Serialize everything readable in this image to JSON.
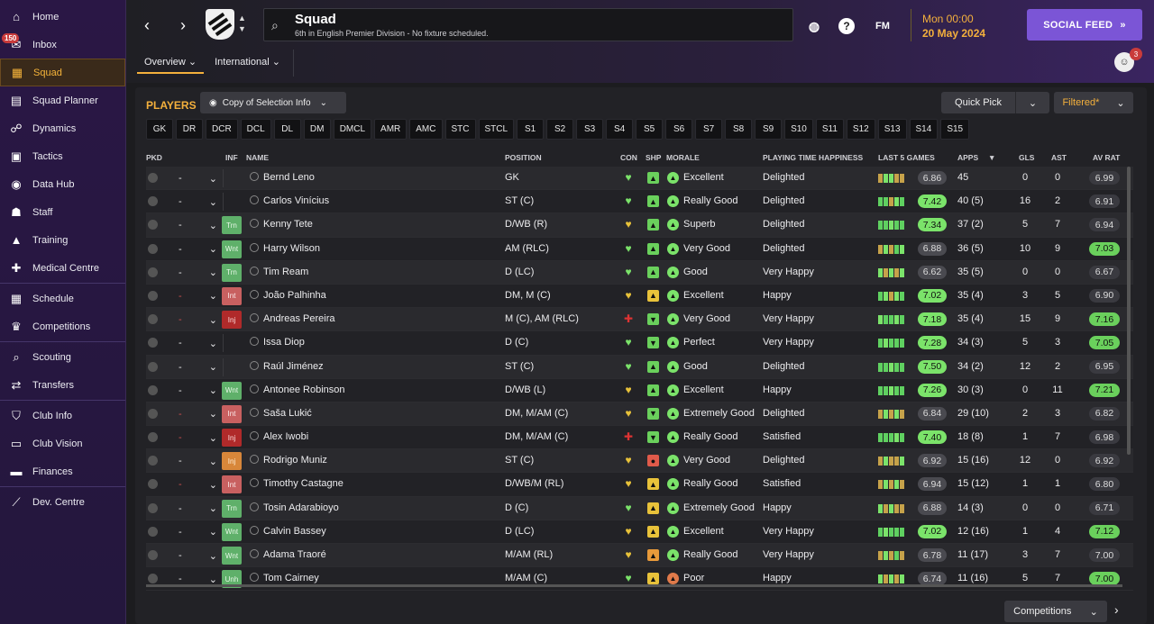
{
  "sidebar": {
    "items": [
      {
        "label": "Home",
        "icon": "home-icon",
        "glyph": "⌂"
      },
      {
        "label": "Inbox",
        "icon": "inbox-icon",
        "glyph": "✉",
        "badge": "150"
      },
      {
        "label": "Squad",
        "icon": "shirt-icon",
        "glyph": "▦",
        "active": true
      },
      {
        "label": "Squad Planner",
        "icon": "clipboard-icon",
        "glyph": "▤"
      },
      {
        "label": "Dynamics",
        "icon": "people-icon",
        "glyph": "☍"
      },
      {
        "label": "Tactics",
        "icon": "tactics-board-icon",
        "glyph": "▣"
      },
      {
        "label": "Data Hub",
        "icon": "data-hub-icon",
        "glyph": "◉"
      },
      {
        "label": "Staff",
        "icon": "staff-icon",
        "glyph": "☗"
      },
      {
        "label": "Training",
        "icon": "training-cone-icon",
        "glyph": "▲"
      },
      {
        "label": "Medical Centre",
        "icon": "medical-icon",
        "glyph": "✚"
      },
      {
        "label": "Schedule",
        "icon": "calendar-icon",
        "glyph": "▦",
        "sep": true
      },
      {
        "label": "Competitions",
        "icon": "trophy-icon",
        "glyph": "♛"
      },
      {
        "label": "Scouting",
        "icon": "magnifier-icon",
        "glyph": "⌕",
        "sep": true
      },
      {
        "label": "Transfers",
        "icon": "transfer-arrows-icon",
        "glyph": "⇄"
      },
      {
        "label": "Club Info",
        "icon": "shield-icon",
        "glyph": "⛉",
        "sep": true
      },
      {
        "label": "Club Vision",
        "icon": "briefcase-icon",
        "glyph": "▭"
      },
      {
        "label": "Finances",
        "icon": "money-icon",
        "glyph": "▬"
      },
      {
        "label": "Dev. Centre",
        "icon": "growth-icon",
        "glyph": "⟋",
        "sep": true
      }
    ]
  },
  "header": {
    "title": "Squad",
    "subtitle": "6th in English Premier Division - No fixture scheduled.",
    "time": "Mon 00:00",
    "date": "20 May 2024",
    "fm_label": "FM",
    "social_feed": "SOCIAL FEED",
    "tabs": [
      {
        "label": "Overview ⌄"
      },
      {
        "label": "International ⌄"
      }
    ],
    "notif_count": "3"
  },
  "toolbar": {
    "title": "PLAYERS",
    "copy_info": "Copy of Selection Info",
    "quick_pick": "Quick Pick",
    "filtered": "Filtered*"
  },
  "position_filters": [
    "GK",
    "DR",
    "DCR",
    "DCL",
    "DL",
    "DM",
    "DMCL",
    "AMR",
    "AMC",
    "STC",
    "STCL",
    "S1",
    "S2",
    "S3",
    "S4",
    "S5",
    "S6",
    "S7",
    "S8",
    "S9",
    "S10",
    "S11",
    "S12",
    "S13",
    "S14",
    "S15"
  ],
  "columns": {
    "pkd": "PKD",
    "inf": "INF",
    "name": "NAME",
    "position": "POSITION",
    "con": "CON",
    "shp": "SHP",
    "morale": "MORALE",
    "pth": "PLAYING TIME HAPPINESS",
    "last5": "LAST 5 GAMES",
    "apps": "APPS",
    "gls": "GLS",
    "ast": "AST",
    "avrat": "AV RAT"
  },
  "players": [
    {
      "pkd": "-",
      "inf": "",
      "name": "Bernd Leno",
      "pos": "GK",
      "con": "good",
      "shp": "up",
      "mor": "Excellent",
      "pth": "Delighted",
      "form": [
        1,
        2,
        2,
        1,
        1
      ],
      "frat": "6.86",
      "fgood": false,
      "apps": "45",
      "gls": "0",
      "ast": "0",
      "avr": "6.99",
      "avgood": false
    },
    {
      "pkd": "-",
      "inf": "",
      "name": "Carlos Vinícius",
      "pos": "ST (C)",
      "con": "good",
      "shp": "up",
      "mor": "Really Good",
      "pth": "Delighted",
      "form": [
        3,
        3,
        1,
        2,
        3
      ],
      "frat": "7.42",
      "fgood": true,
      "apps": "40 (5)",
      "gls": "16",
      "ast": "2",
      "avr": "6.91",
      "avgood": false
    },
    {
      "pkd": "-",
      "inf": "Trn",
      "infc": "trn",
      "name": "Kenny Tete",
      "pos": "D/WB (R)",
      "con": "ok",
      "shp": "up",
      "mor": "Superb",
      "pth": "Delighted",
      "form": [
        3,
        3,
        2,
        3,
        3
      ],
      "frat": "7.34",
      "fgood": true,
      "apps": "37 (2)",
      "gls": "5",
      "ast": "7",
      "avr": "6.94",
      "avgood": false
    },
    {
      "pkd": "-",
      "inf": "Wnt",
      "infc": "wnt",
      "name": "Harry Wilson",
      "pos": "AM (RLC)",
      "con": "good",
      "shp": "up",
      "mor": "Very Good",
      "pth": "Delighted",
      "form": [
        1,
        2,
        1,
        3,
        2
      ],
      "frat": "6.88",
      "fgood": false,
      "apps": "36 (5)",
      "gls": "10",
      "ast": "9",
      "avr": "7.03",
      "avgood": true
    },
    {
      "pkd": "-",
      "inf": "Trn",
      "infc": "trn",
      "name": "Tim Ream",
      "pos": "D (LC)",
      "con": "good",
      "shp": "up",
      "mor": "Good",
      "pth": "Very Happy",
      "form": [
        2,
        1,
        2,
        1,
        2
      ],
      "frat": "6.62",
      "fgood": false,
      "apps": "35 (5)",
      "gls": "0",
      "ast": "0",
      "avr": "6.67",
      "avgood": false
    },
    {
      "pkd": "-",
      "pkdred": true,
      "inf": "Int",
      "infc": "int",
      "name": "João Palhinha",
      "pos": "DM, M (C)",
      "con": "ok",
      "shp": "up2",
      "mor": "Excellent",
      "pth": "Happy",
      "form": [
        3,
        2,
        1,
        2,
        3
      ],
      "frat": "7.02",
      "fgood": true,
      "apps": "35 (4)",
      "gls": "3",
      "ast": "5",
      "avr": "6.90",
      "avgood": false
    },
    {
      "pkd": "-",
      "pkdred": true,
      "inf": "Inj",
      "infc": "inj",
      "name": "Andreas Pereira",
      "pos": "M (C), AM (RLC)",
      "con": "inj",
      "shp": "down",
      "mor": "Very Good",
      "pth": "Very Happy",
      "form": [
        2,
        3,
        3,
        2,
        3
      ],
      "frat": "7.18",
      "fgood": true,
      "apps": "35 (4)",
      "gls": "15",
      "ast": "9",
      "avr": "7.16",
      "avgood": true
    },
    {
      "pkd": "-",
      "inf": "",
      "name": "Issa Diop",
      "pos": "D (C)",
      "con": "good",
      "shp": "down",
      "mor": "Perfect",
      "pth": "Very Happy",
      "form": [
        3,
        2,
        3,
        3,
        3
      ],
      "frat": "7.28",
      "fgood": true,
      "apps": "34 (3)",
      "gls": "5",
      "ast": "3",
      "avr": "7.05",
      "avgood": true
    },
    {
      "pkd": "-",
      "inf": "",
      "name": "Raúl Jiménez",
      "pos": "ST (C)",
      "con": "good",
      "shp": "up",
      "mor": "Good",
      "pth": "Delighted",
      "form": [
        3,
        3,
        2,
        3,
        3
      ],
      "frat": "7.50",
      "fgood": true,
      "apps": "34 (2)",
      "gls": "12",
      "ast": "2",
      "avr": "6.95",
      "avgood": false
    },
    {
      "pkd": "-",
      "inf": "Wnt",
      "infc": "wnt",
      "name": "Antonee Robinson",
      "pos": "D/WB (L)",
      "con": "ok",
      "shp": "up",
      "mor": "Excellent",
      "pth": "Happy",
      "form": [
        3,
        3,
        2,
        3,
        3
      ],
      "frat": "7.26",
      "fgood": true,
      "apps": "30 (3)",
      "gls": "0",
      "ast": "11",
      "avr": "7.21",
      "avgood": true
    },
    {
      "pkd": "-",
      "pkdred": true,
      "inf": "Int",
      "infc": "int",
      "name": "Saša Lukić",
      "pos": "DM, M/AM (C)",
      "con": "ok",
      "shp": "down",
      "mor": "Extremely Good",
      "pth": "Delighted",
      "form": [
        1,
        2,
        1,
        2,
        1
      ],
      "frat": "6.84",
      "fgood": false,
      "apps": "29 (10)",
      "gls": "2",
      "ast": "3",
      "avr": "6.82",
      "avgood": false
    },
    {
      "pkd": "-",
      "pkdred": true,
      "inf": "Inj",
      "infc": "inj",
      "name": "Alex Iwobi",
      "pos": "DM, M/AM (C)",
      "con": "inj",
      "shp": "down",
      "mor": "Really Good",
      "pth": "Satisfied",
      "form": [
        3,
        3,
        3,
        2,
        3
      ],
      "frat": "7.40",
      "fgood": true,
      "apps": "18 (8)",
      "gls": "1",
      "ast": "7",
      "avr": "6.98",
      "avgood": false
    },
    {
      "pkd": "-",
      "inf": "Inj",
      "infc": "inj2",
      "name": "Rodrigo Muniz",
      "pos": "ST (C)",
      "con": "ok",
      "shp": "red",
      "mor": "Very Good",
      "pth": "Delighted",
      "form": [
        1,
        2,
        1,
        1,
        2
      ],
      "frat": "6.92",
      "fgood": false,
      "apps": "15 (16)",
      "gls": "12",
      "ast": "0",
      "avr": "6.92",
      "avgood": false
    },
    {
      "pkd": "-",
      "pkdred": true,
      "inf": "Int",
      "infc": "int",
      "name": "Timothy Castagne",
      "pos": "D/WB/M (RL)",
      "con": "ok",
      "shp": "up2",
      "mor": "Really Good",
      "pth": "Satisfied",
      "form": [
        1,
        2,
        1,
        2,
        1
      ],
      "frat": "6.94",
      "fgood": false,
      "apps": "15 (12)",
      "gls": "1",
      "ast": "1",
      "avr": "6.80",
      "avgood": false
    },
    {
      "pkd": "-",
      "inf": "Trn",
      "infc": "trn",
      "name": "Tosin Adarabioyo",
      "pos": "D (C)",
      "con": "good",
      "shp": "up2",
      "mor": "Extremely Good",
      "pth": "Happy",
      "form": [
        2,
        1,
        2,
        1,
        1
      ],
      "frat": "6.88",
      "fgood": false,
      "apps": "14 (3)",
      "gls": "0",
      "ast": "0",
      "avr": "6.71",
      "avgood": false
    },
    {
      "pkd": "-",
      "inf": "Wnt",
      "infc": "wnt",
      "name": "Calvin Bassey",
      "pos": "D (LC)",
      "con": "ok",
      "shp": "up2",
      "mor": "Excellent",
      "pth": "Very Happy",
      "form": [
        3,
        2,
        3,
        3,
        3
      ],
      "frat": "7.02",
      "fgood": true,
      "apps": "12 (16)",
      "gls": "1",
      "ast": "4",
      "avr": "7.12",
      "avgood": true
    },
    {
      "pkd": "-",
      "inf": "Wnt",
      "infc": "wnt",
      "name": "Adama Traoré",
      "pos": "M/AM (RL)",
      "con": "ok",
      "shp": "orange",
      "mor": "Really Good",
      "pth": "Very Happy",
      "form": [
        1,
        2,
        1,
        3,
        1
      ],
      "frat": "6.78",
      "fgood": false,
      "apps": "11 (17)",
      "gls": "3",
      "ast": "7",
      "avr": "7.00",
      "avgood": false
    },
    {
      "pkd": "-",
      "inf": "Unh",
      "infc": "trn",
      "name": "Tom Cairney",
      "pos": "M/AM (C)",
      "con": "good",
      "shp": "up2",
      "mor": "Poor",
      "pth": "Happy",
      "form": [
        2,
        1,
        2,
        1,
        2
      ],
      "frat": "6.74",
      "fgood": false,
      "apps": "11 (16)",
      "gls": "5",
      "ast": "7",
      "avr": "7.00",
      "avgood": true
    }
  ],
  "footer": {
    "competitions": "Competitions"
  },
  "colors": {
    "accent": "#f4b03c",
    "purple": "#7b55d6",
    "good": "#7be36a"
  }
}
